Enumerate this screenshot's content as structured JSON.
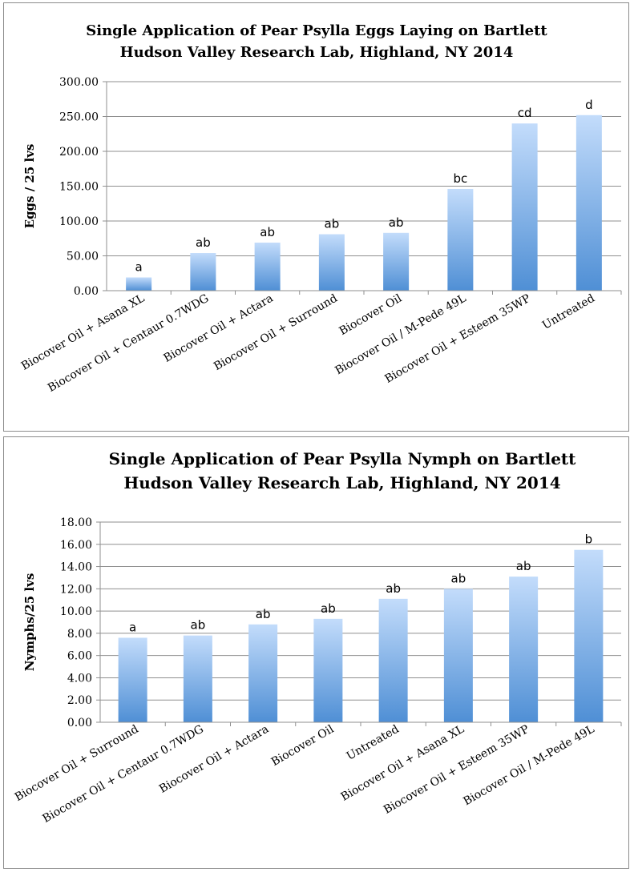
{
  "bar_gradient": {
    "top": "#c3dcfb",
    "bottom": "#4f8fd5"
  },
  "chart_data": [
    {
      "type": "bar",
      "title": [
        "Single Application of Pear Psylla Eggs Laying on Bartlett",
        "Hudson Valley Research Lab, Highland, NY 2014"
      ],
      "xlabel": "",
      "ylabel": "Eggs / 25 lvs",
      "ylim": [
        0,
        300
      ],
      "yticks": [
        "0.00",
        "50.00",
        "100.00",
        "150.00",
        "200.00",
        "250.00",
        "300.00"
      ],
      "grid": true,
      "legend": "none",
      "categories": [
        "Biocover Oil + Asana XL",
        "Biocover Oil + Centaur 0.7WDG",
        "Biocover Oil + Actara",
        "Biocover Oil + Surround",
        "Biocover Oil",
        "Biocover Oil / M-Pede 49L",
        "Biocover Oil + Esteem 35WP",
        "Untreated"
      ],
      "values": [
        19,
        54,
        69,
        81,
        83,
        146,
        240,
        252
      ],
      "data_labels": [
        "a",
        "ab",
        "ab",
        "ab",
        "ab",
        "bc",
        "cd",
        "d"
      ]
    },
    {
      "type": "bar",
      "title": [
        "Single Application of Pear Psylla Nymph on Bartlett",
        "Hudson Valley Research Lab, Highland, NY 2014"
      ],
      "xlabel": "",
      "ylabel": "Nymphs/25 lvs",
      "ylim": [
        0,
        18
      ],
      "yticks": [
        "0.00",
        "2.00",
        "4.00",
        "6.00",
        "8.00",
        "10.00",
        "12.00",
        "14.00",
        "16.00",
        "18.00"
      ],
      "grid": true,
      "legend": "none",
      "categories": [
        "Biocover Oil + Surround",
        "Biocover Oil + Centaur 0.7WDG",
        "Biocover Oil + Actara",
        "Biocover Oil",
        "Untreated",
        "Biocover Oil + Asana XL",
        "Biocover Oil + Esteem 35WP",
        "Biocover Oil / M-Pede 49L"
      ],
      "values": [
        7.6,
        7.8,
        8.8,
        9.3,
        11.1,
        12.0,
        13.1,
        15.5
      ],
      "data_labels": [
        "a",
        "ab",
        "ab",
        "ab",
        "ab",
        "ab",
        "ab",
        "b"
      ]
    }
  ]
}
